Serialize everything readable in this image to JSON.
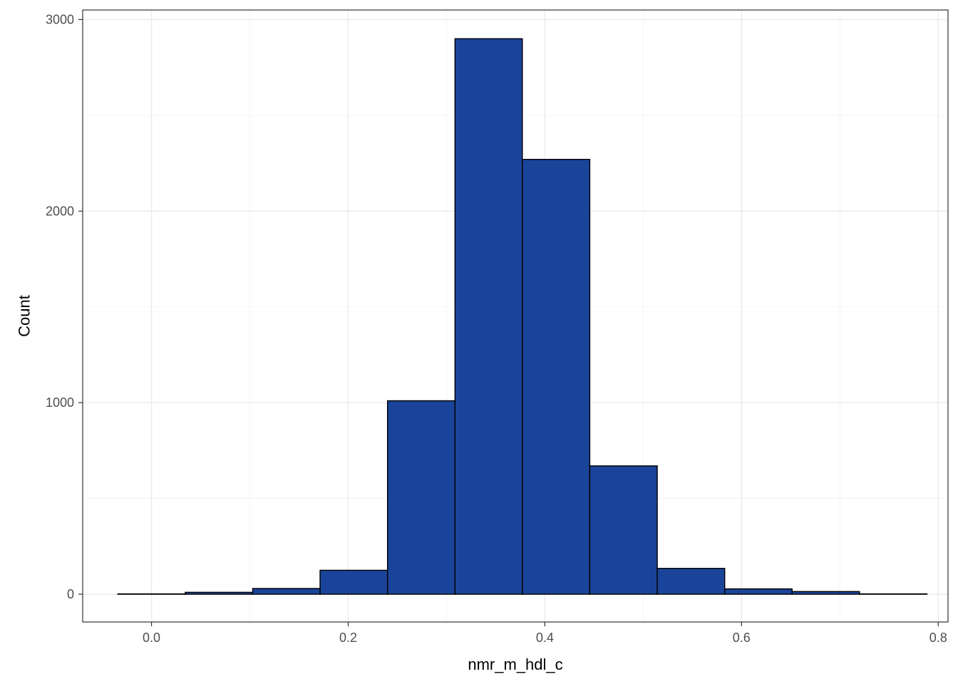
{
  "chart_data": {
    "type": "bar",
    "subtype": "histogram",
    "title": "",
    "xlabel": "nmr_m_hdl_c",
    "ylabel": "Count",
    "xlim": [
      -0.07,
      0.81
    ],
    "ylim": [
      -145,
      3050
    ],
    "x_ticks": [
      "0.0",
      "0.2",
      "0.4",
      "0.6",
      "0.8"
    ],
    "x_tick_values": [
      0.0,
      0.2,
      0.4,
      0.6,
      0.8
    ],
    "y_ticks": [
      "0",
      "1000",
      "2000",
      "3000"
    ],
    "y_tick_values": [
      0,
      1000,
      2000,
      3000
    ],
    "bin_width": 0.0686,
    "bins": [
      {
        "start": -0.0343,
        "end": 0.0343,
        "count": 2
      },
      {
        "start": 0.0343,
        "end": 0.1029,
        "count": 10
      },
      {
        "start": 0.1029,
        "end": 0.1714,
        "count": 30
      },
      {
        "start": 0.1714,
        "end": 0.24,
        "count": 125
      },
      {
        "start": 0.24,
        "end": 0.3086,
        "count": 1010
      },
      {
        "start": 0.3086,
        "end": 0.3771,
        "count": 2900
      },
      {
        "start": 0.3771,
        "end": 0.4457,
        "count": 2270
      },
      {
        "start": 0.4457,
        "end": 0.5143,
        "count": 670
      },
      {
        "start": 0.5143,
        "end": 0.5829,
        "count": 135
      },
      {
        "start": 0.5829,
        "end": 0.6514,
        "count": 28
      },
      {
        "start": 0.6514,
        "end": 0.72,
        "count": 14
      },
      {
        "start": 0.72,
        "end": 0.7886,
        "count": 2
      }
    ],
    "fill_color": "#1a4499",
    "edge_color": "#000000",
    "grid": true,
    "legend": "none",
    "theme": "bw"
  }
}
